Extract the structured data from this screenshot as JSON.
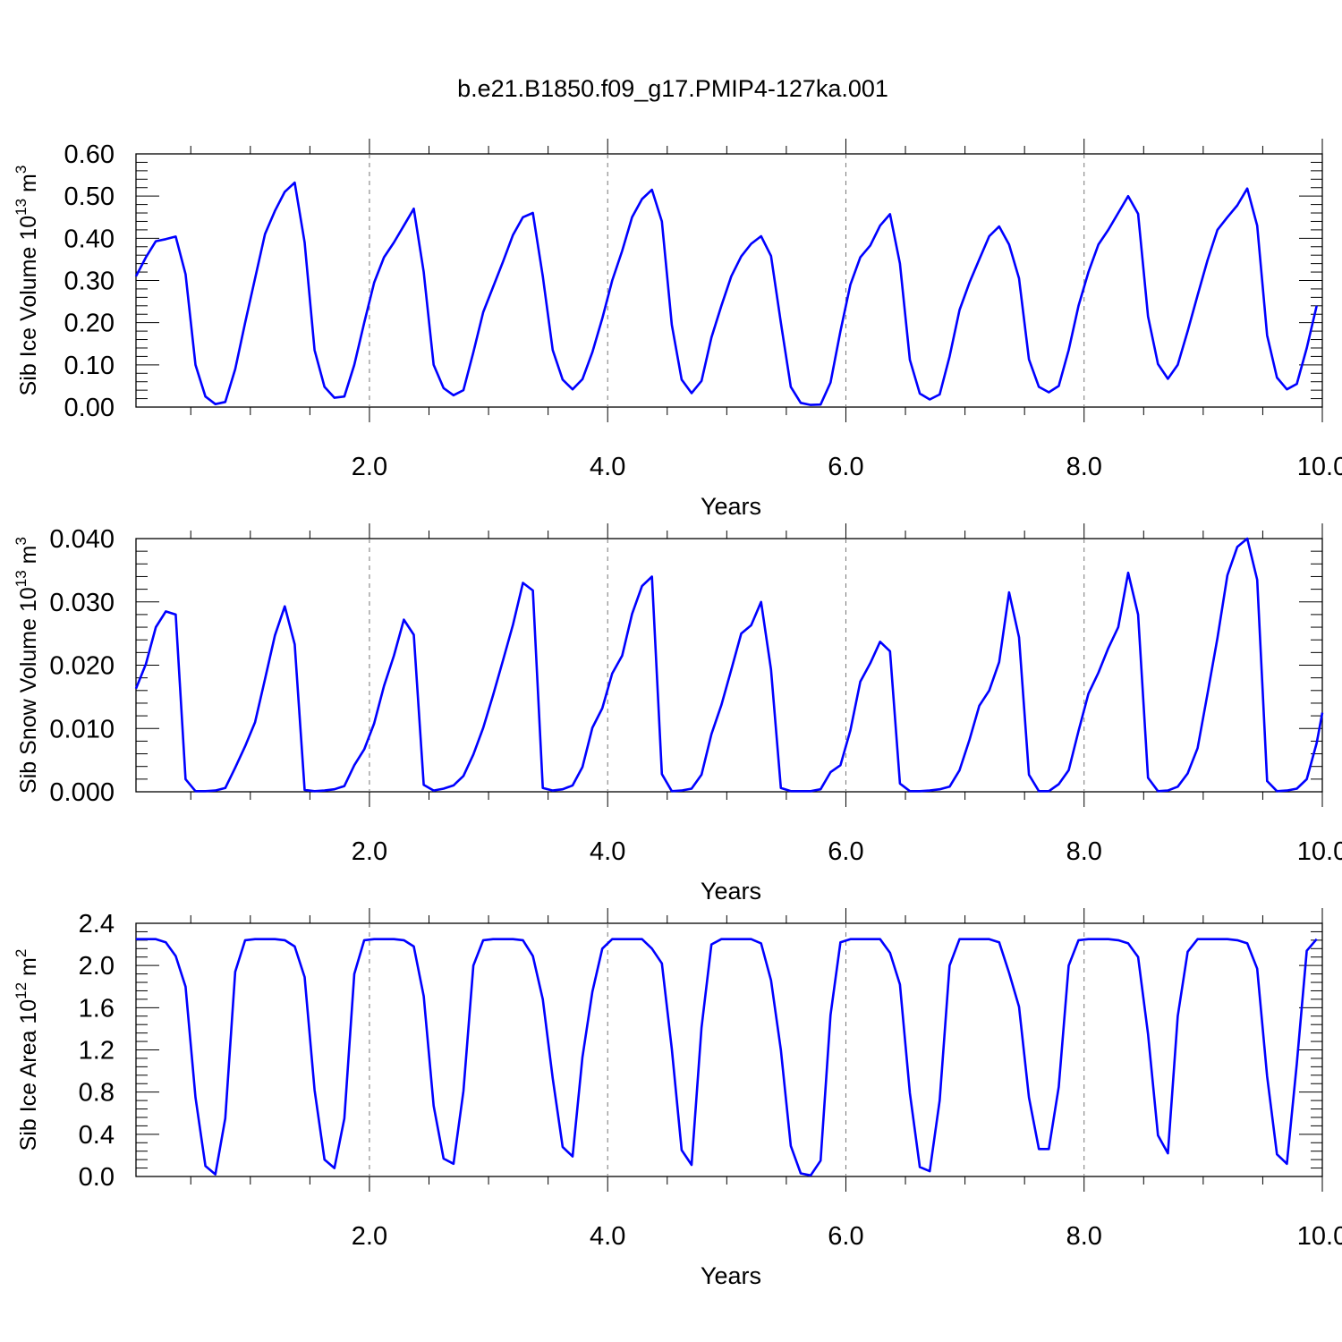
{
  "title": "b.e21.B1850.f09_g17.PMIP4-127ka.001",
  "colors": {
    "series": "#0000ff",
    "axis": "#000000",
    "grid": "#777777"
  },
  "chart_data": [
    {
      "type": "line",
      "xlabel": "Years",
      "ylabel": "Sib Ice Volume 10",
      "ylabel_exp": "13",
      "ylabel_unit": " m",
      "ylabel_unit_exp": "3",
      "xlim": [
        0.04,
        10.0
      ],
      "ylim": [
        0.0,
        0.6
      ],
      "yticks": [
        "0.00",
        "0.10",
        "0.20",
        "0.30",
        "0.40",
        "0.50",
        "0.60"
      ],
      "ytick_values": [
        0,
        0.1,
        0.2,
        0.3,
        0.4,
        0.5,
        0.6
      ],
      "xticks": [
        "2.0",
        "4.0",
        "6.0",
        "8.0",
        "10.0"
      ],
      "xtick_values": [
        2,
        4,
        6,
        8,
        10
      ],
      "grid": "vertical dashed at major x ticks",
      "x_start": 0.04,
      "x_step": 0.0833,
      "values": [
        0.31,
        0.355,
        0.393,
        0.398,
        0.404,
        0.315,
        0.1,
        0.025,
        0.007,
        0.012,
        0.09,
        0.2,
        0.305,
        0.41,
        0.465,
        0.51,
        0.532,
        0.39,
        0.135,
        0.048,
        0.022,
        0.025,
        0.1,
        0.2,
        0.295,
        0.355,
        0.39,
        0.43,
        0.47,
        0.32,
        0.1,
        0.045,
        0.028,
        0.04,
        0.13,
        0.225,
        0.285,
        0.345,
        0.408,
        0.45,
        0.46,
        0.31,
        0.135,
        0.065,
        0.042,
        0.066,
        0.13,
        0.21,
        0.3,
        0.37,
        0.45,
        0.493,
        0.515,
        0.44,
        0.195,
        0.065,
        0.033,
        0.062,
        0.165,
        0.24,
        0.31,
        0.357,
        0.387,
        0.405,
        0.358,
        0.2,
        0.048,
        0.01,
        0.005,
        0.006,
        0.058,
        0.18,
        0.29,
        0.355,
        0.383,
        0.43,
        0.457,
        0.34,
        0.112,
        0.032,
        0.018,
        0.03,
        0.12,
        0.23,
        0.295,
        0.35,
        0.405,
        0.428,
        0.385,
        0.305,
        0.113,
        0.048,
        0.035,
        0.05,
        0.135,
        0.24,
        0.32,
        0.385,
        0.42,
        0.46,
        0.5,
        0.458,
        0.215,
        0.102,
        0.067,
        0.1,
        0.18,
        0.265,
        0.348,
        0.42,
        0.45,
        0.478,
        0.518,
        0.43,
        0.17,
        0.07,
        0.042,
        0.055,
        0.14,
        0.24
      ]
    },
    {
      "type": "line",
      "xlabel": "Years",
      "ylabel": "Sib Snow Volume 10",
      "ylabel_exp": "13",
      "ylabel_unit": " m",
      "ylabel_unit_exp": "3",
      "xlim": [
        0.04,
        10.0
      ],
      "ylim": [
        0.0,
        0.04
      ],
      "yticks": [
        "0.000",
        "0.010",
        "0.020",
        "0.030",
        "0.040"
      ],
      "ytick_values": [
        0,
        0.01,
        0.02,
        0.03,
        0.04
      ],
      "xticks": [
        "2.0",
        "4.0",
        "6.0",
        "8.0",
        "10.0"
      ],
      "xtick_values": [
        2,
        4,
        6,
        8,
        10
      ],
      "grid": "vertical dashed at major x ticks",
      "x_start": 0.04,
      "x_step": 0.0833,
      "values": [
        0.0163,
        0.0202,
        0.026,
        0.0285,
        0.028,
        0.002,
        0.0001,
        0.0001,
        0.0002,
        0.0006,
        0.0038,
        0.0072,
        0.011,
        0.0178,
        0.0247,
        0.0293,
        0.0233,
        0.0003,
        0.0001,
        0.0002,
        0.0004,
        0.0009,
        0.0042,
        0.0067,
        0.0108,
        0.0167,
        0.0215,
        0.0272,
        0.0248,
        0.0011,
        0.0002,
        0.0005,
        0.001,
        0.0025,
        0.0059,
        0.0101,
        0.0153,
        0.0208,
        0.0264,
        0.033,
        0.0318,
        0.0006,
        0.0002,
        0.0004,
        0.001,
        0.0039,
        0.0101,
        0.0132,
        0.0187,
        0.0215,
        0.0281,
        0.0325,
        0.034,
        0.0028,
        0.0001,
        0.0002,
        0.0005,
        0.0027,
        0.0091,
        0.0137,
        0.0193,
        0.025,
        0.0263,
        0.03,
        0.0193,
        0.0006,
        0.0001,
        0.0001,
        0.0001,
        0.0004,
        0.0031,
        0.0042,
        0.0097,
        0.0174,
        0.0203,
        0.0237,
        0.0222,
        0.0013,
        0.0001,
        0.0001,
        0.0002,
        0.0004,
        0.0008,
        0.0034,
        0.0082,
        0.0136,
        0.016,
        0.0205,
        0.0315,
        0.0244,
        0.0027,
        0.0001,
        0.0001,
        0.0012,
        0.0034,
        0.0096,
        0.0155,
        0.0188,
        0.0227,
        0.026,
        0.0346,
        0.028,
        0.0022,
        0.0001,
        0.0002,
        0.0008,
        0.0029,
        0.0069,
        0.0155,
        0.0243,
        0.0342,
        0.0387,
        0.04,
        0.0335,
        0.0017,
        0.0001,
        0.0002,
        0.0005,
        0.002,
        0.0077,
        0.0125
      ]
    },
    {
      "type": "line",
      "xlabel": "Years",
      "ylabel": "Sib Ice Area 10",
      "ylabel_exp": "12",
      "ylabel_unit": " m",
      "ylabel_unit_exp": "2",
      "xlim": [
        0.04,
        10.0
      ],
      "ylim": [
        0.0,
        2.4
      ],
      "yticks": [
        "0.0",
        "0.4",
        "0.8",
        "1.2",
        "1.6",
        "2.0",
        "2.4"
      ],
      "ytick_values": [
        0,
        0.4,
        0.8,
        1.2,
        1.6,
        2.0,
        2.4
      ],
      "xticks": [
        "2.0",
        "4.0",
        "6.0",
        "8.0",
        "10.0"
      ],
      "xtick_values": [
        2,
        4,
        6,
        8,
        10
      ],
      "grid": "vertical dashed at major x ticks",
      "x_start": 0.04,
      "x_step": 0.0833,
      "values": [
        2.25,
        2.25,
        2.25,
        2.22,
        2.09,
        1.8,
        0.75,
        0.1,
        0.02,
        0.55,
        1.94,
        2.24,
        2.25,
        2.25,
        2.25,
        2.24,
        2.18,
        1.89,
        0.82,
        0.16,
        0.08,
        0.55,
        1.92,
        2.24,
        2.25,
        2.25,
        2.25,
        2.24,
        2.18,
        1.71,
        0.67,
        0.17,
        0.12,
        0.81,
        2.0,
        2.24,
        2.25,
        2.25,
        2.25,
        2.24,
        2.09,
        1.68,
        0.93,
        0.28,
        0.19,
        1.13,
        1.75,
        2.16,
        2.25,
        2.25,
        2.25,
        2.25,
        2.16,
        2.02,
        1.21,
        0.25,
        0.11,
        1.41,
        2.2,
        2.25,
        2.25,
        2.25,
        2.25,
        2.21,
        1.86,
        1.2,
        0.29,
        0.03,
        0.01,
        0.15,
        1.53,
        2.22,
        2.25,
        2.25,
        2.25,
        2.25,
        2.12,
        1.82,
        0.79,
        0.09,
        0.05,
        0.72,
        2.0,
        2.25,
        2.25,
        2.25,
        2.25,
        2.22,
        1.93,
        1.61,
        0.75,
        0.26,
        0.26,
        0.85,
        2.0,
        2.24,
        2.25,
        2.25,
        2.25,
        2.24,
        2.21,
        2.08,
        1.35,
        0.39,
        0.22,
        1.52,
        2.13,
        2.25,
        2.25,
        2.25,
        2.25,
        2.24,
        2.21,
        1.97,
        0.95,
        0.21,
        0.12,
        1.07,
        2.14,
        2.25
      ]
    }
  ]
}
